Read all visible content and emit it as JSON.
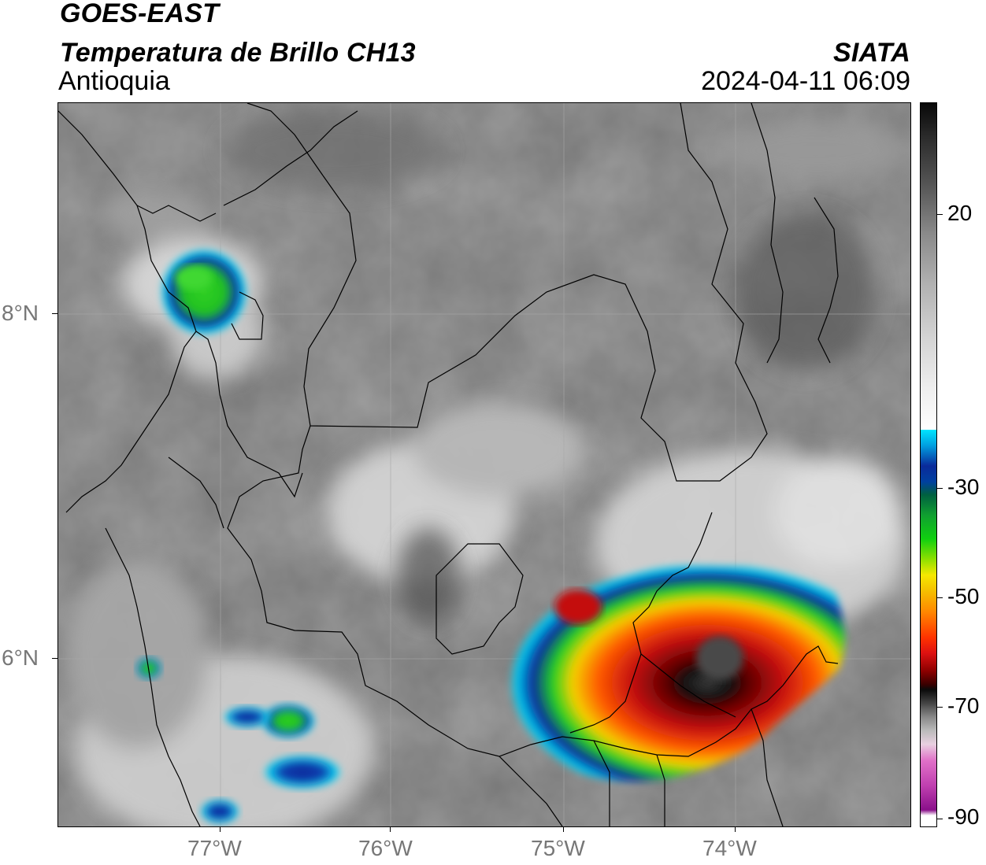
{
  "header": {
    "satellite": "GOES-EAST",
    "product": "Temperatura de Brillo CH13",
    "region": "Antioquia",
    "source": "SIATA",
    "timestamp": "2024-04-11 06:09"
  },
  "map": {
    "lat_labels": [
      "8°N",
      "6°N"
    ],
    "lon_labels": [
      "77°W",
      "76°W",
      "75°W",
      "74°W"
    ],
    "lon_range": [
      -77.95,
      -73.05
    ],
    "lat_range": [
      4.95,
      9.15
    ]
  },
  "colorbar": {
    "labels": [
      "20",
      "-30",
      "-50",
      "-70",
      "-90"
    ],
    "colors": {
      "warm_gray": "#d8d8d8",
      "cyan": "#00e5ff",
      "blue": "#00209a",
      "green": "#10d010",
      "yellow": "#f5e800",
      "orange": "#ff8800",
      "red": "#dd1111",
      "dark_red": "#4a0000",
      "black": "#0a0a0a",
      "pink": "#e060c0",
      "purple": "#8a108a"
    }
  }
}
